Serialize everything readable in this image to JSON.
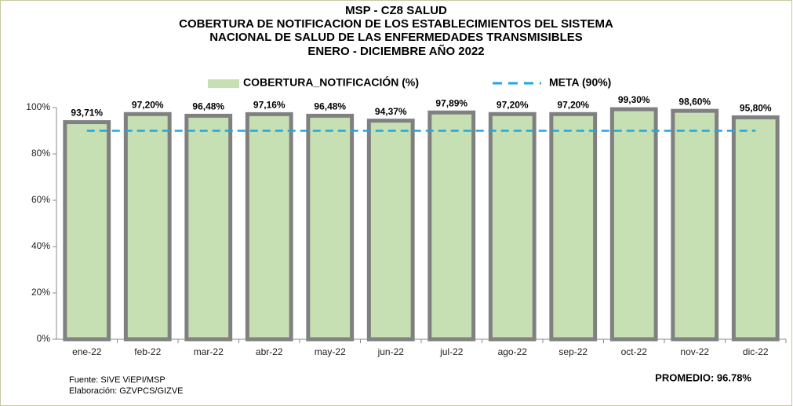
{
  "chart_data": {
    "type": "bar",
    "title": [
      "MSP - CZ8  SALUD",
      "COBERTURA DE NOTIFICACION DE LOS ESTABLECIMIENTOS DEL SISTEMA",
      "NACIONAL DE SALUD DE LAS ENFERMEDADES TRANSMISIBLES",
      "ENERO - DICIEMBRE   AÑO 2022"
    ],
    "categories": [
      "ene-22",
      "feb-22",
      "mar-22",
      "abr-22",
      "may-22",
      "jun-22",
      "jul-22",
      "ago-22",
      "sep-22",
      "oct-22",
      "nov-22",
      "dic-22"
    ],
    "series": [
      {
        "name": "COBERTURA_NOTIFICACIÓN (%)",
        "color": "#c6e0b4",
        "values": [
          93.71,
          97.2,
          96.48,
          97.16,
          96.48,
          94.37,
          97.89,
          97.2,
          97.2,
          99.3,
          98.6,
          95.8
        ],
        "value_labels": [
          "93,71%",
          "97,20%",
          "96,48%",
          "97,16%",
          "96,48%",
          "94,37%",
          "97,89%",
          "97,20%",
          "97,20%",
          "99,30%",
          "98,60%",
          "95,80%"
        ]
      }
    ],
    "meta": {
      "name": "META (90%)",
      "value": 90,
      "color": "#1fa7e0"
    },
    "ylim": [
      0,
      100
    ],
    "yticks": [
      {
        "value": 0,
        "label": "0%"
      },
      {
        "value": 20,
        "label": "20%"
      },
      {
        "value": 40,
        "label": "40%"
      },
      {
        "value": 60,
        "label": "60%"
      },
      {
        "value": 80,
        "label": "80%"
      },
      {
        "value": 100,
        "label": "100%"
      }
    ],
    "notes": [
      "Fuente: SIVE ViEPI/MSP",
      "Elaboración: GZVPCS/GIZVE"
    ],
    "annotation": "PROMEDIO: 96.78%"
  }
}
